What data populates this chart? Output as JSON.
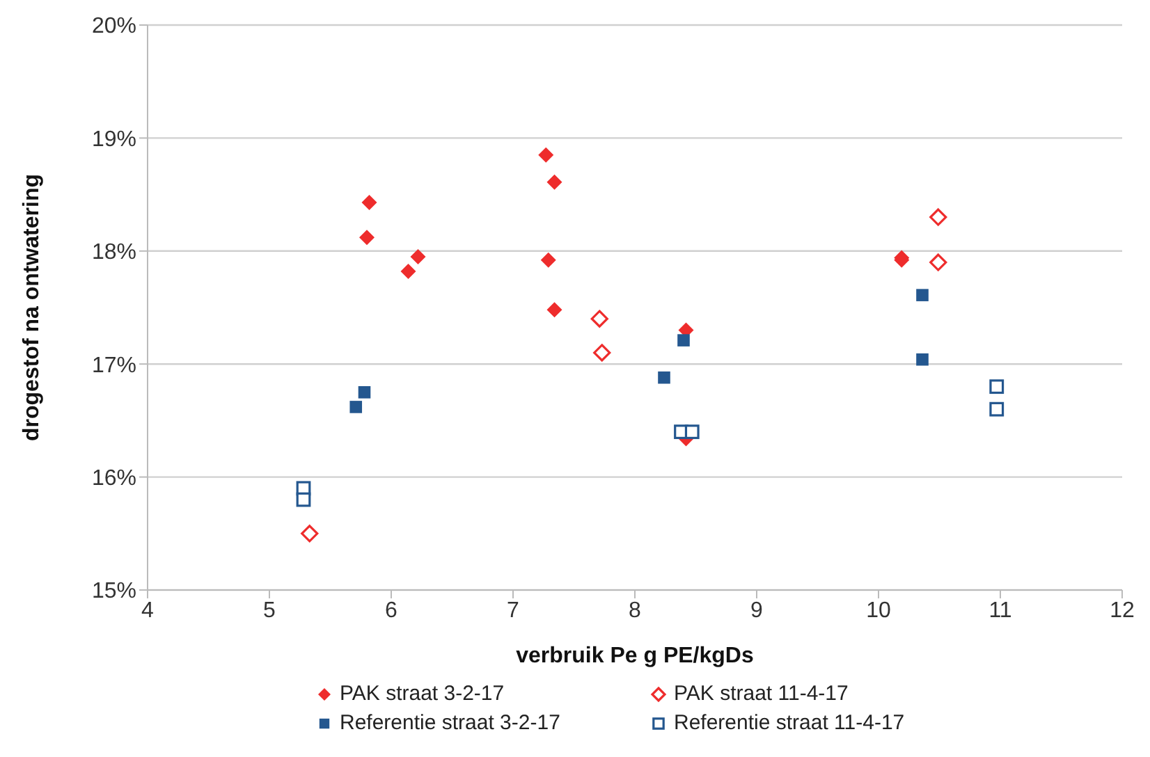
{
  "chart_data": {
    "type": "scatter",
    "xlabel": "verbruik Pe g PE/kgDs",
    "ylabel": "drogestof na ontwatering",
    "xlim": [
      4,
      12
    ],
    "xticks": [
      4,
      5,
      6,
      7,
      8,
      9,
      10,
      11,
      12
    ],
    "ylim": [
      15,
      20
    ],
    "yticks": [
      {
        "value": 15,
        "label": "15%"
      },
      {
        "value": 16,
        "label": "16%"
      },
      {
        "value": 17,
        "label": "17%"
      },
      {
        "value": 18,
        "label": "18%"
      },
      {
        "value": 19,
        "label": "19%"
      },
      {
        "value": 20,
        "label": "20%"
      }
    ],
    "grid": "y",
    "legend": "bottom",
    "series": [
      {
        "name": "PAK straat 3-2-17",
        "color": "#ee2c2c",
        "marker": "diamond",
        "x": [
          5.82,
          5.8,
          6.14,
          6.22,
          7.27,
          7.34,
          7.29,
          7.34,
          8.42,
          8.42,
          10.19,
          10.19
        ],
        "values": [
          18.43,
          18.12,
          17.82,
          17.95,
          18.85,
          18.61,
          17.92,
          17.48,
          17.3,
          16.34,
          17.94,
          17.92
        ]
      },
      {
        "name": "PAK straat 11-4-17",
        "color": "#ee2c2c",
        "marker": "diamond-open",
        "x": [
          5.33,
          7.71,
          7.73,
          10.49,
          10.49
        ],
        "values": [
          15.5,
          17.4,
          17.1,
          18.3,
          17.9
        ]
      },
      {
        "name": "Referentie straat 3-2-17",
        "color": "#24578f",
        "marker": "square",
        "x": [
          5.71,
          5.78,
          8.24,
          8.4,
          10.36,
          10.36
        ],
        "values": [
          16.62,
          16.75,
          16.88,
          17.21,
          17.61,
          17.04
        ]
      },
      {
        "name": "Referentie straat 11-4-17",
        "color": "#24578f",
        "marker": "square-open",
        "x": [
          5.28,
          5.28,
          8.38,
          8.47,
          10.97,
          10.97
        ],
        "values": [
          15.9,
          15.8,
          16.4,
          16.4,
          16.8,
          16.6
        ]
      }
    ]
  }
}
